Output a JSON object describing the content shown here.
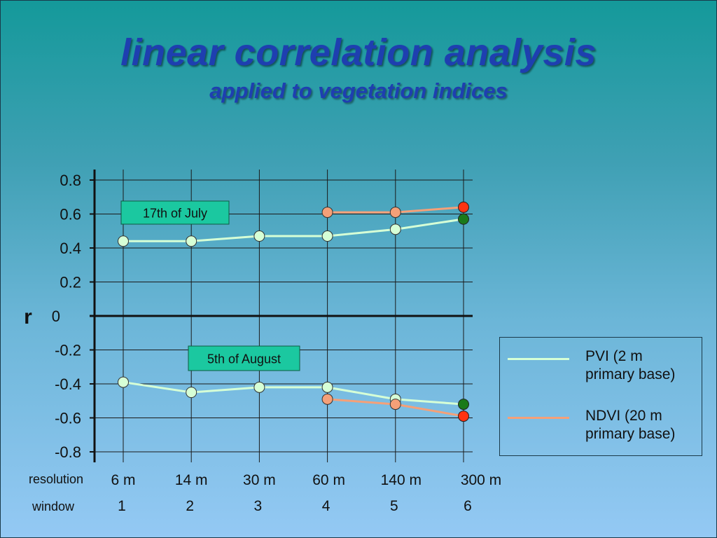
{
  "slide": {
    "title": "linear correlation analysis",
    "subtitle": "applied to vegetation indices"
  },
  "chart_data": {
    "type": "line",
    "ylabel": "r",
    "ylim": [
      -0.8,
      0.8
    ],
    "yticks": [
      0.8,
      0.6,
      0.4,
      0.2,
      0,
      -0.2,
      -0.4,
      -0.6,
      -0.8
    ],
    "ytick_labels": [
      "0.8",
      "0.6",
      "0.4",
      "0.2",
      "0",
      "-0.2",
      "-0.4",
      "-0.6",
      "-0.8"
    ],
    "grid": true,
    "row_labels": {
      "resolution": "resolution",
      "window": "window"
    },
    "resolution_labels": [
      "6 m",
      "14 m",
      "30 m",
      "60 m",
      "140 m",
      "300 m"
    ],
    "window_labels": [
      "1",
      "2",
      "3",
      "4",
      "5",
      "6"
    ],
    "annotations": [
      "17th of July",
      "5th of August"
    ],
    "series": [
      {
        "name": "PVI (2 m primary base)",
        "group": "17th of July",
        "color": "#d6ffd6",
        "x": [
          1,
          2,
          3,
          4,
          5,
          6
        ],
        "values": [
          0.44,
          0.44,
          0.47,
          0.47,
          0.51,
          0.57
        ]
      },
      {
        "name": "NDVI (20 m primary base)",
        "group": "17th of July",
        "color": "#f5a078",
        "x": [
          4,
          5,
          6
        ],
        "values": [
          0.61,
          0.61,
          0.64
        ]
      },
      {
        "name": "PVI (2 m primary base)",
        "group": "5th of August",
        "color": "#d6ffd6",
        "x": [
          1,
          2,
          3,
          4,
          5,
          6
        ],
        "values": [
          -0.39,
          -0.45,
          -0.42,
          -0.42,
          -0.49,
          -0.52
        ]
      },
      {
        "name": "NDVI (20 m primary base)",
        "group": "5th of August",
        "color": "#f5a078",
        "x": [
          4,
          5,
          6
        ],
        "values": [
          -0.49,
          -0.52,
          -0.59
        ]
      }
    ],
    "highlight_points": [
      {
        "x": 6,
        "value": 0.64,
        "color": "#ff3311"
      },
      {
        "x": 6,
        "value": 0.57,
        "color": "#1a7a1a"
      },
      {
        "x": 6,
        "value": -0.52,
        "color": "#1a7a1a"
      },
      {
        "x": 6,
        "value": -0.59,
        "color": "#ff3311"
      }
    ],
    "legend": [
      {
        "label_line1": "PVI (2 m",
        "label_line2": "primary base)",
        "color": "#d6ffd6"
      },
      {
        "label_line1": "NDVI (20 m",
        "label_line2": "primary base)",
        "color": "#f5a078"
      }
    ],
    "legend_position": "bottom-right"
  }
}
